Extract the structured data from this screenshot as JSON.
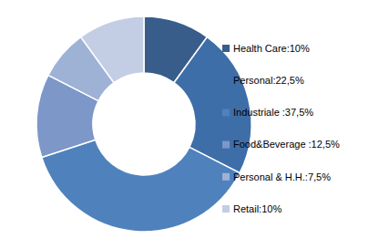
{
  "chart_data": {
    "type": "donut",
    "categories": [
      "Health Care:10%",
      "Personal:22,5%",
      "Industriale :37,5%",
      "Food&Beverage :12,5%",
      "Personal & H.H.:7,5%",
      "Retail:10%"
    ],
    "values": [
      10,
      22.5,
      37.5,
      12.5,
      7.5,
      10
    ],
    "colors": [
      "#385d8a",
      "#3e6ea8",
      "#4f81bd",
      "#7c97c8",
      "#9eb2d6",
      "#c3cde4"
    ],
    "legend": "right"
  }
}
